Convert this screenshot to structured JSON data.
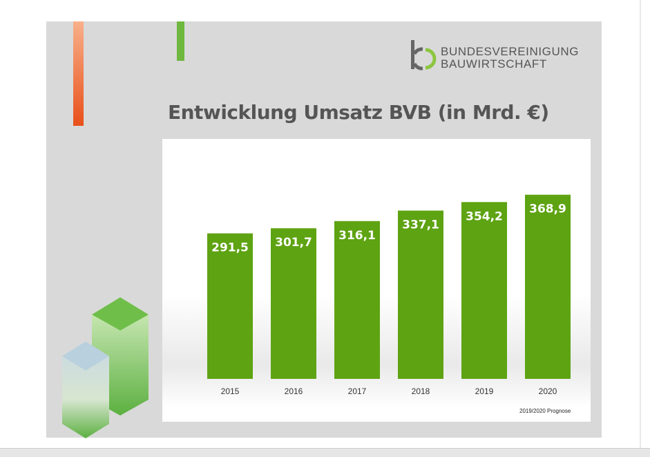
{
  "logo": {
    "line1": "BUNDESVEREINIGUNG",
    "line2": "BAUWIRTSCHAFT"
  },
  "chart_data": {
    "type": "bar",
    "title": "Entwicklung Umsatz BVB (in Mrd. €)",
    "categories": [
      "2015",
      "2016",
      "2017",
      "2018",
      "2019",
      "2020"
    ],
    "values": [
      291.5,
      301.7,
      316.1,
      337.1,
      354.2,
      368.9
    ],
    "value_labels": [
      "291,5",
      "301,7",
      "316,1",
      "337,1",
      "354,2",
      "368,9"
    ],
    "xlabel": "",
    "ylabel": "",
    "ylim": [
      0,
      380
    ],
    "grid": false,
    "annotation": "2019/2020 Prognose",
    "bar_color": "#5ea312"
  }
}
